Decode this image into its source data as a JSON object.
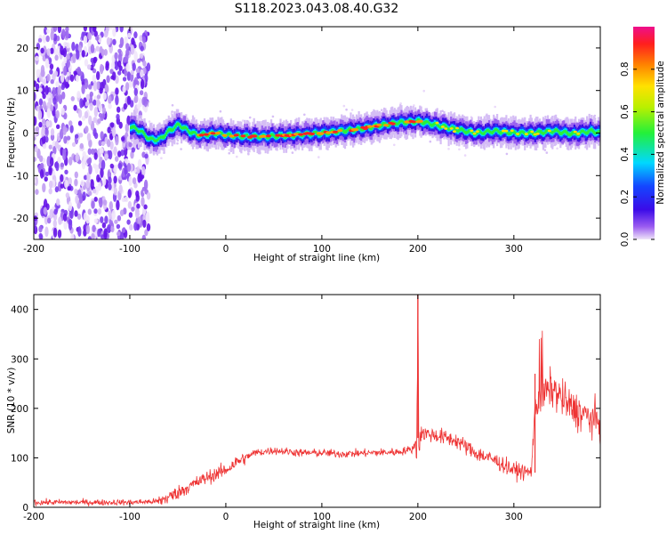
{
  "title": "S118.2023.043.08.40.G32",
  "chart_data": [
    {
      "type": "heatmap",
      "xlabel": "Height of straight line (km)",
      "ylabel": "Frequency (Hz)",
      "xlim": [
        -200,
        390
      ],
      "ylim": [
        -25,
        25
      ],
      "xticks": [
        -200,
        -100,
        0,
        100,
        200,
        300
      ],
      "yticks": [
        -20,
        -10,
        0,
        10,
        20
      ],
      "colorbar": {
        "label": "Normalized spectral amplitude",
        "range": [
          0,
          1
        ],
        "ticks": [
          0.0,
          0.2,
          0.4,
          0.6,
          0.8
        ],
        "colormap": "rainbow (purple-blue-cyan-green-yellow-red-magenta)"
      },
      "ridge_frequency_hz": {
        "x": [
          -100,
          -90,
          -80,
          -70,
          -60,
          -50,
          -40,
          -30,
          -20,
          -10,
          0,
          20,
          40,
          60,
          80,
          100,
          120,
          140,
          160,
          180,
          200,
          220,
          240,
          260,
          280,
          300,
          320,
          340,
          360,
          380,
          390
        ],
        "y": [
          1.5,
          0.5,
          -1.5,
          -1.5,
          0.5,
          2,
          0.5,
          -0.5,
          -0.3,
          0,
          -0.5,
          -0.8,
          -0.8,
          -0.6,
          -0.3,
          0,
          0.5,
          1,
          1.8,
          2.5,
          2.8,
          1.8,
          0.8,
          0,
          0.5,
          0,
          0,
          0.5,
          -0.2,
          0.5,
          0
        ]
      },
      "noise_region_x": [
        -200,
        -80
      ],
      "grid": false
    },
    {
      "type": "line",
      "xlabel": "Height of straight line (km)",
      "ylabel": "SNR (10 * v/v)",
      "xlim": [
        -200,
        390
      ],
      "ylim": [
        0,
        430
      ],
      "xticks": [
        -200,
        -100,
        0,
        100,
        200,
        300
      ],
      "yticks": [
        0,
        100,
        200,
        300,
        400
      ],
      "color": "#ee3333",
      "grid": false,
      "series": [
        {
          "x": [
            -200,
            -150,
            -100,
            -70,
            -60,
            -40,
            -20,
            0,
            10,
            20,
            30,
            50,
            80,
            100,
            120,
            150,
            180,
            195,
            199,
            200,
            201,
            205,
            220,
            240,
            260,
            280,
            300,
            318,
            322,
            330,
            340,
            360,
            380,
            390
          ],
          "y": [
            10,
            10,
            10,
            12,
            20,
            40,
            60,
            75,
            90,
            100,
            110,
            115,
            110,
            110,
            108,
            110,
            112,
            118,
            140,
            400,
            145,
            150,
            145,
            135,
            110,
            95,
            75,
            70,
            200,
            230,
            240,
            200,
            180,
            170
          ]
        }
      ],
      "annotations": {
        "spike": {
          "x": 200,
          "y": 430
        },
        "jump": {
          "x": 322,
          "y_before": 70,
          "y_after": 200
        }
      }
    }
  ]
}
